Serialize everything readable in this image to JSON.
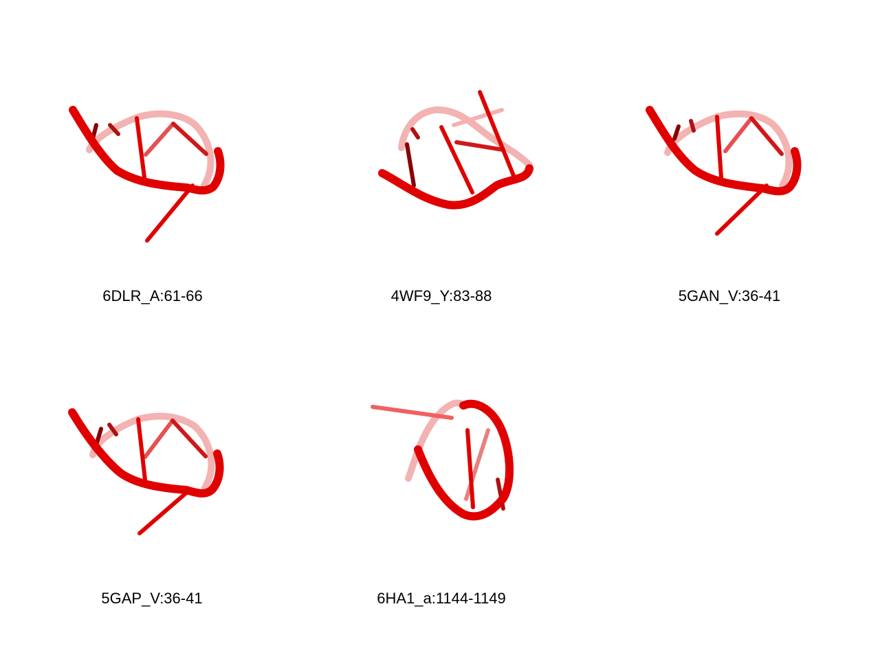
{
  "colors": {
    "strand": "#e00000",
    "strand_dark": "#8a0000",
    "strand_light": "#f3a0a0"
  },
  "panels": [
    {
      "label": "6DLR_A:61-66"
    },
    {
      "label": "4WF9_Y:83-88"
    },
    {
      "label": "5GAN_V:36-41"
    },
    {
      "label": "5GAP_V:36-41"
    },
    {
      "label": "6HA1_a:1144-1149"
    }
  ]
}
